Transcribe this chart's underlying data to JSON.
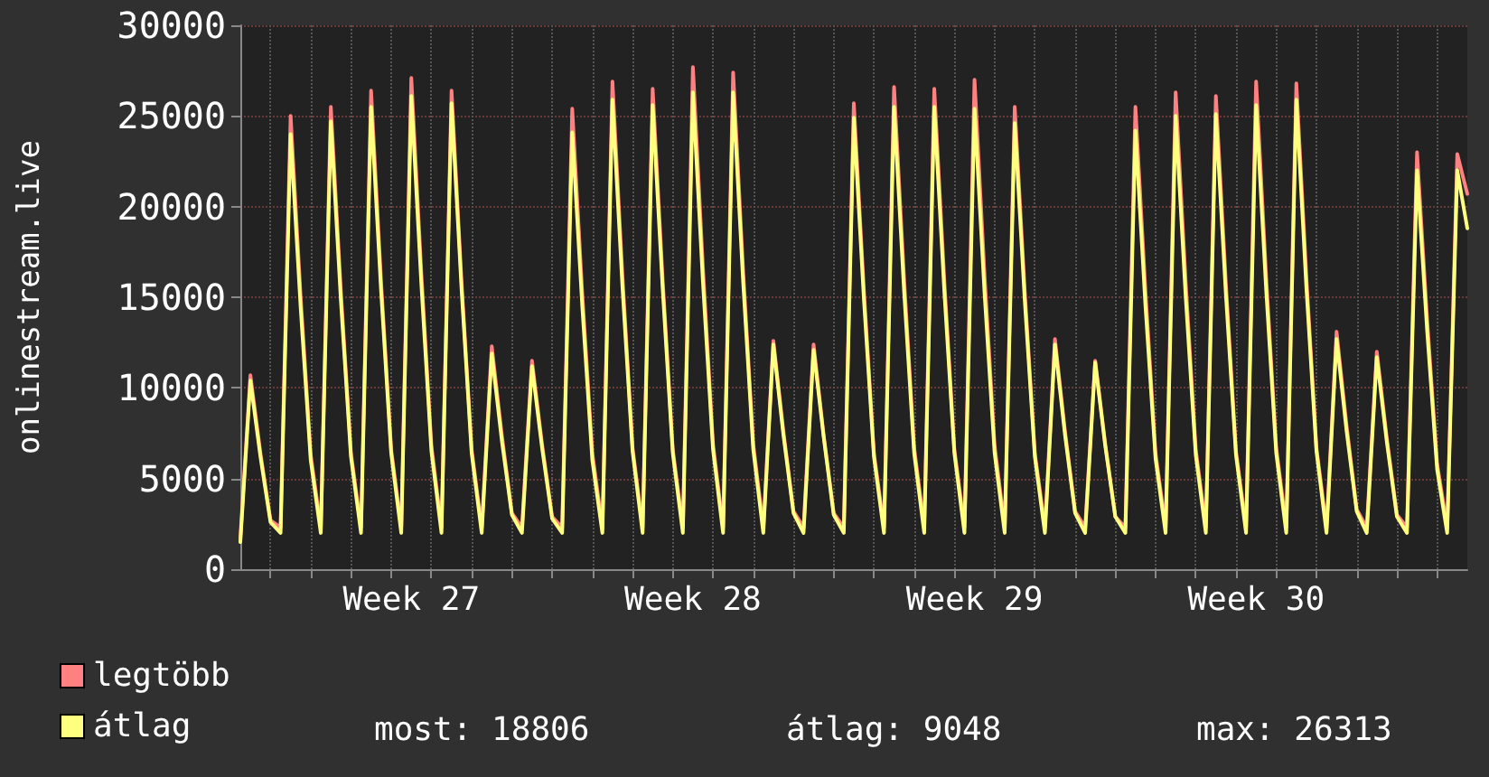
{
  "chart_data": {
    "type": "line",
    "ylabel": "onlinestream.live",
    "legend": "bottom left",
    "grid": true,
    "marker": "none",
    "line_style": "solid",
    "annotations": [
      "most: 18806",
      "átlag: 9048",
      "max: 26313"
    ],
    "ylim": [
      0,
      30000
    ],
    "yticks": [
      0,
      5000,
      10000,
      15000,
      20000,
      25000,
      30000
    ],
    "categories": [
      null,
      null,
      null,
      null,
      null,
      null,
      null,
      null,
      null,
      null,
      null,
      null,
      null,
      null,
      null,
      null,
      null,
      "Week 27",
      null,
      null,
      null,
      null,
      null,
      null,
      null,
      null,
      null,
      null,
      null,
      null,
      null,
      null,
      null,
      null,
      null,
      null,
      null,
      null,
      null,
      null,
      null,
      null,
      null,
      null,
      null,
      "Week 28",
      null,
      null,
      null,
      null,
      null,
      null,
      null,
      null,
      null,
      null,
      null,
      null,
      null,
      null,
      null,
      null,
      null,
      null,
      null,
      null,
      null,
      null,
      null,
      null,
      null,
      null,
      null,
      "Week 29",
      null,
      null,
      null,
      null,
      null,
      null,
      null,
      null,
      null,
      null,
      null,
      null,
      null,
      null,
      null,
      null,
      null,
      null,
      null,
      null,
      null,
      null,
      null,
      null,
      null,
      null,
      null,
      "Week 30",
      null,
      null,
      null,
      null,
      null,
      null,
      null,
      null,
      null,
      null,
      null,
      null,
      null,
      null,
      null,
      null,
      null,
      null,
      null,
      null,
      null
    ],
    "series": [
      {
        "name": "legtöbb",
        "color": "#ff8080",
        "values": [
          1700,
          10700,
          6400,
          2700,
          2300,
          25000,
          15000,
          6300,
          2300,
          25500,
          15300,
          6400,
          2300,
          26400,
          15800,
          6600,
          2300,
          27100,
          16300,
          6800,
          2300,
          26400,
          15800,
          6600,
          2300,
          12300,
          7400,
          3100,
          2300,
          11500,
          6900,
          2900,
          2300,
          25400,
          15200,
          6400,
          2300,
          26900,
          16100,
          6700,
          2300,
          26500,
          15900,
          6600,
          2300,
          27700,
          16600,
          6900,
          2300,
          27400,
          16400,
          6900,
          2300,
          12600,
          7600,
          3200,
          2300,
          12400,
          7400,
          3100,
          2300,
          25700,
          15400,
          6400,
          2300,
          26600,
          16000,
          6700,
          2300,
          26500,
          15900,
          6600,
          2300,
          27000,
          16200,
          6800,
          2300,
          25500,
          15300,
          6400,
          2300,
          12700,
          7600,
          3200,
          2300,
          11500,
          6900,
          2900,
          2300,
          25500,
          15300,
          6400,
          2300,
          26300,
          15800,
          6600,
          2300,
          26100,
          15700,
          6500,
          2300,
          26900,
          16100,
          6700,
          2300,
          26800,
          16100,
          6700,
          2300,
          13100,
          7900,
          3300,
          2300,
          12000,
          7200,
          3000,
          2300,
          23000,
          13800,
          5800,
          2300,
          22900,
          20700
        ]
      },
      {
        "name": "átlag",
        "color": "#ffff80",
        "values": [
          1500,
          10400,
          6200,
          2600,
          2000,
          24000,
          14400,
          6000,
          2000,
          24700,
          14800,
          6200,
          2000,
          25500,
          15300,
          6400,
          2000,
          26100,
          15700,
          6500,
          2000,
          25700,
          15400,
          6400,
          2000,
          11900,
          7100,
          3000,
          2000,
          11200,
          6700,
          2800,
          2000,
          24100,
          14500,
          6000,
          2000,
          25900,
          15500,
          6500,
          2000,
          25600,
          15400,
          6400,
          2000,
          26300,
          15800,
          6600,
          2000,
          26300,
          15800,
          6600,
          2000,
          12400,
          7400,
          3100,
          2000,
          12100,
          7300,
          3000,
          2000,
          24900,
          14900,
          6200,
          2000,
          25500,
          15300,
          6400,
          2000,
          25500,
          15300,
          6400,
          2000,
          25400,
          15200,
          6400,
          2000,
          24600,
          14800,
          6200,
          2000,
          12400,
          7400,
          3100,
          2000,
          11400,
          6800,
          2900,
          2000,
          24200,
          14500,
          6100,
          2000,
          25000,
          15000,
          6300,
          2000,
          25100,
          15100,
          6300,
          2000,
          25600,
          15400,
          6400,
          2000,
          25900,
          15500,
          6500,
          2000,
          12700,
          7600,
          3200,
          2000,
          11700,
          7000,
          2900,
          2000,
          22000,
          13200,
          5500,
          2000,
          22000,
          18800
        ]
      }
    ]
  }
}
